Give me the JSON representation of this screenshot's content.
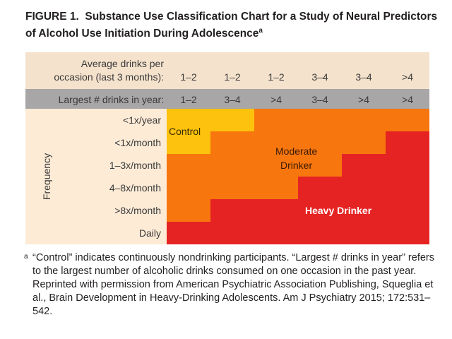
{
  "figure": {
    "label": "FIGURE 1.",
    "title": "Substance Use Classification Chart for a Study of Neural Predictors of Alcohol Use Initiation During Adolescence",
    "title_superscript": "a"
  },
  "chart": {
    "avg_drinks_label_line1": "Average drinks per",
    "avg_drinks_label_line2": "occasion (last 3 months):",
    "avg_drinks_values": [
      "1–2",
      "1–2",
      "1–2",
      "3–4",
      "3–4",
      ">4"
    ],
    "largest_drinks_label": "Largest # drinks in year:",
    "largest_drinks_values": [
      "1–2",
      "3–4",
      ">4",
      "3–4",
      ">4",
      ">4"
    ],
    "frequency_axis_label": "Frequency",
    "frequency_rows": [
      "<1x/year",
      "<1x/month",
      "1–3x/month",
      "4–8x/month",
      ">8x/month",
      "Daily"
    ],
    "regions": {
      "control": "Control",
      "moderate_line1": "Moderate",
      "moderate_line2": "Drinker",
      "heavy": "Heavy Drinker"
    },
    "classification_grid": [
      [
        "control",
        "control",
        "moderate",
        "moderate",
        "moderate",
        "moderate"
      ],
      [
        "control",
        "moderate",
        "moderate",
        "moderate",
        "moderate",
        "heavy"
      ],
      [
        "moderate",
        "moderate",
        "moderate",
        "moderate",
        "heavy",
        "heavy"
      ],
      [
        "moderate",
        "moderate",
        "moderate",
        "heavy",
        "heavy",
        "heavy"
      ],
      [
        "moderate",
        "heavy",
        "heavy",
        "heavy",
        "heavy",
        "heavy"
      ],
      [
        "heavy",
        "heavy",
        "heavy",
        "heavy",
        "heavy",
        "heavy"
      ]
    ],
    "colors": {
      "control": "#fcc20d",
      "moderate": "#f7760e",
      "heavy": "#e62323",
      "header_band": "#f4e2cc",
      "largest_band": "#a8a6a6",
      "row_band": "#fdebd6"
    }
  },
  "footnote": {
    "marker": "a",
    "text": "“Control” indicates continuously nondrinking participants. “Largest # drinks in year” refers to the largest number of alcoholic drinks consumed on one occasion in the past year. Reprinted with permission from American Psychiatric Association Publishing, Squeglia et al., Brain Development in Heavy-Drinking Adolescents. Am J Psychiatry 2015; 172:531–542."
  }
}
